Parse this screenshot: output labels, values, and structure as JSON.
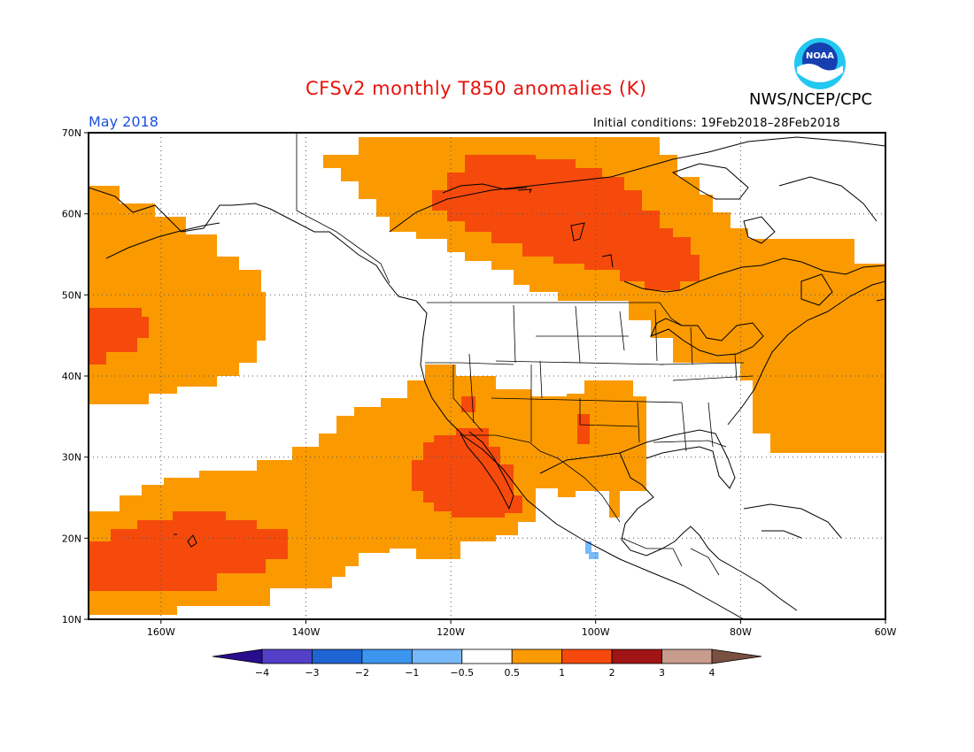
{
  "title": "CFSv2 monthly T850 anomalies (K)",
  "agency": "NWS/NCEP/CPC",
  "logo_text": "NOAA",
  "valid_month": "May 2018",
  "initial_conditions": "Initial conditions: 19Feb2018–28Feb2018",
  "lat_labels": [
    "70N",
    "60N",
    "50N",
    "40N",
    "30N",
    "20N",
    "10N"
  ],
  "lon_labels": [
    "160W",
    "140W",
    "120W",
    "100W",
    "80W",
    "60W"
  ],
  "colorbar": {
    "colors": [
      "#2a0d8c",
      "#5240c8",
      "#1e64d2",
      "#3c96f0",
      "#78b9fa",
      "#ffffff",
      "#fa9a00",
      "#f54a0c",
      "#a01414",
      "#c89c8c",
      "#7a5040"
    ],
    "ticks": [
      "−4",
      "−3",
      "−2",
      "−1",
      "−0.5",
      "0.5",
      "1",
      "2",
      "3",
      "4"
    ]
  },
  "colors": {
    "title": "#e8120c",
    "month": "#1a4fe0",
    "orange": "#fa9a00",
    "red": "#f54a0c",
    "light_blue": "#78b9fa"
  }
}
